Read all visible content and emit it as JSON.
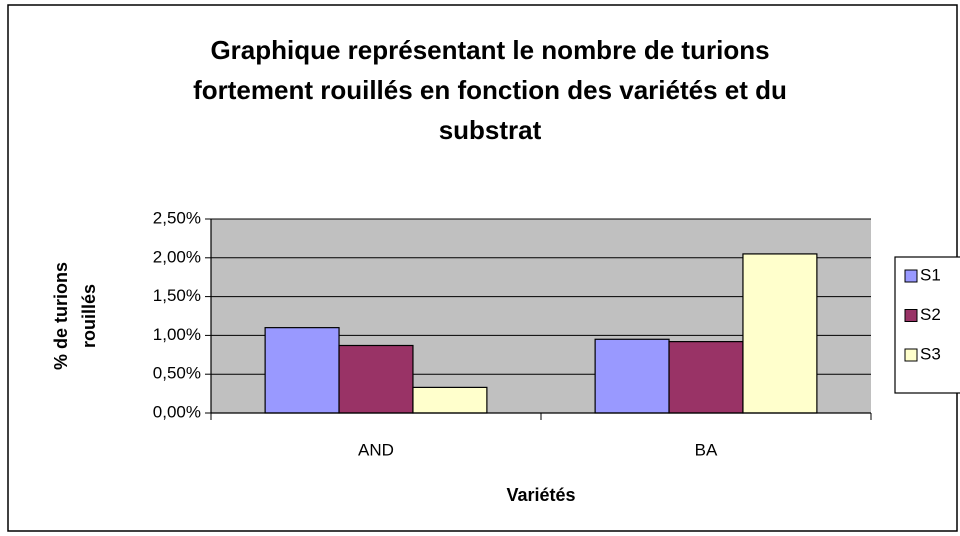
{
  "chart_data": {
    "type": "bar",
    "title": [
      "Graphique représentant le nombre de turions",
      "fortement rouillés en fonction des variétés et du",
      "substrat"
    ],
    "y_label": [
      "% de turions",
      "rouillés"
    ],
    "x_label": "Variétés",
    "categories": [
      "AND",
      "BA"
    ],
    "series": [
      {
        "name": "S1",
        "color": "#9999ff",
        "values": [
          1.1,
          0.95
        ]
      },
      {
        "name": "S2",
        "color": "#993366",
        "values": [
          0.87,
          0.92
        ]
      },
      {
        "name": "S3",
        "color": "#ffffcc",
        "values": [
          0.33,
          2.05
        ]
      }
    ],
    "ylim": [
      0,
      2.5
    ],
    "yticks": [
      {
        "value": 0,
        "label": "0,00%"
      },
      {
        "value": 0.5,
        "label": "0,50%"
      },
      {
        "value": 1,
        "label": "1,00%"
      },
      {
        "value": 1.5,
        "label": "1,50%"
      },
      {
        "value": 2,
        "label": "2,00%"
      },
      {
        "value": 2.5,
        "label": "2,50%"
      }
    ],
    "plot_background": "#c0c0c0",
    "grid": true,
    "legend": "right"
  }
}
